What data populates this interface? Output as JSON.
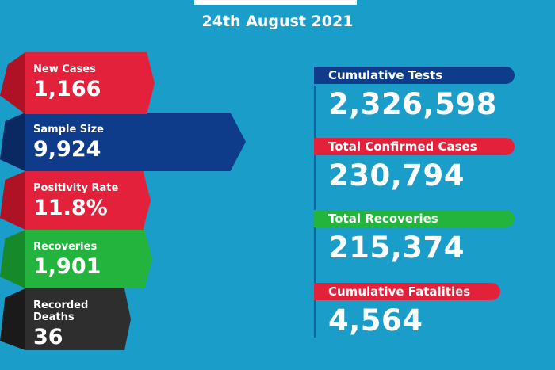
{
  "header": {
    "date": "24th August 2021"
  },
  "left_stats": [
    {
      "label": "New Cases",
      "value": "1,166"
    },
    {
      "label": "Sample Size",
      "value": "9,924"
    },
    {
      "label": "Positivity Rate",
      "value": "11.8%"
    },
    {
      "label": "Recoveries",
      "value": "1,901"
    },
    {
      "label": "Recorded Deaths",
      "value": "36"
    }
  ],
  "right_stats": [
    {
      "label": "Cumulative Tests",
      "value": "2,326,598"
    },
    {
      "label": "Total Confirmed Cases",
      "value": "230,794"
    },
    {
      "label": "Total Recoveries",
      "value": "215,374"
    },
    {
      "label": "Cumulative Fatalities",
      "value": "4,564"
    }
  ],
  "colors": {
    "background": "#1a9dc9",
    "red": "#e4213a",
    "navy": "#0e3b8a",
    "green": "#22b43c",
    "dark": "#2e2e2e"
  }
}
